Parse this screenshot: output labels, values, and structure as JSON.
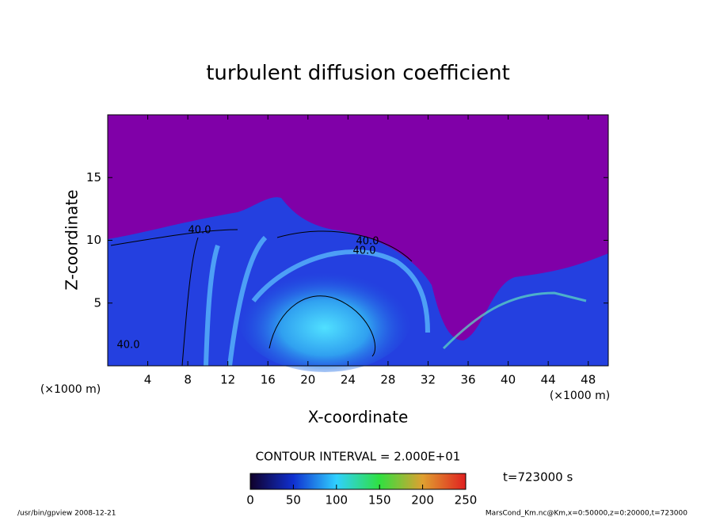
{
  "chart_data": {
    "type": "contour",
    "title": "turbulent diffusion coefficient",
    "x_label": "X-coordinate",
    "y_label": "Z-coordinate",
    "x_unit": "(×1000 m)",
    "y_unit": "(×1000 m)",
    "xlim": [
      0,
      50
    ],
    "xticks": [
      4,
      8,
      12,
      16,
      20,
      24,
      28,
      32,
      36,
      40,
      44,
      48
    ],
    "ylim": [
      0,
      20
    ],
    "yticks": [
      5,
      10,
      15
    ],
    "contour_interval_label": "CONTOUR INTERVAL = 2.000E+01",
    "contour_labels": [
      "40.0",
      "40.0",
      "40.0",
      "40.0"
    ],
    "time_label": "t=723000 s",
    "colorbar": {
      "range": [
        0,
        250
      ],
      "ticks": [
        0,
        50,
        100,
        150,
        200,
        250
      ]
    },
    "footer_left": "/usr/bin/gpview  2008-12-21",
    "footer_right": "MarsCond_Km.nc@Km,x=0:50000,z=0:20000,t=723000"
  }
}
